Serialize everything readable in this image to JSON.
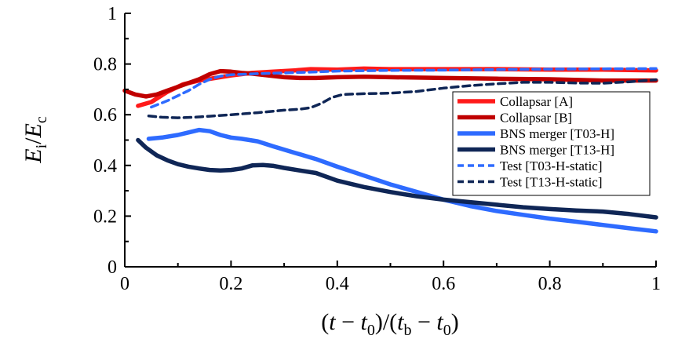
{
  "chart_data": {
    "type": "line",
    "title": "",
    "xlabel": "(t − t0)/(tb − t0)",
    "ylabel": "Ei/Ec",
    "xlim": [
      0,
      1
    ],
    "ylim": [
      0,
      1
    ],
    "x_ticks": [
      0,
      0.2,
      0.4,
      0.6,
      0.8,
      1
    ],
    "x_tick_labels": [
      "0",
      "0.2",
      "0.4",
      "0.6",
      "0.8",
      "1"
    ],
    "y_ticks": [
      0,
      0.2,
      0.4,
      0.6,
      0.8,
      1
    ],
    "y_tick_labels": [
      "0",
      "0.2",
      "0.4",
      "0.6",
      "0.8",
      "1"
    ],
    "grid": false,
    "legend_position": "right",
    "series": [
      {
        "name": "Collapsar [A]",
        "color": "#ff1a1a",
        "style": "solid",
        "x": [
          0.025,
          0.05,
          0.08,
          0.11,
          0.14,
          0.17,
          0.2,
          0.24,
          0.28,
          0.32,
          0.35,
          0.4,
          0.45,
          0.5,
          0.6,
          0.7,
          0.8,
          0.9,
          1.0
        ],
        "y": [
          0.635,
          0.65,
          0.69,
          0.72,
          0.735,
          0.745,
          0.755,
          0.765,
          0.77,
          0.775,
          0.78,
          0.778,
          0.782,
          0.78,
          0.78,
          0.78,
          0.778,
          0.778,
          0.775
        ]
      },
      {
        "name": "Collapsar [B]",
        "color": "#c00000",
        "style": "solid",
        "x": [
          0.0,
          0.02,
          0.04,
          0.06,
          0.08,
          0.1,
          0.12,
          0.14,
          0.16,
          0.18,
          0.2,
          0.22,
          0.24,
          0.27,
          0.3,
          0.33,
          0.36,
          0.4,
          0.45,
          0.5,
          0.6,
          0.7,
          0.8,
          0.9,
          1.0
        ],
        "y": [
          0.695,
          0.68,
          0.672,
          0.68,
          0.695,
          0.71,
          0.725,
          0.74,
          0.76,
          0.772,
          0.77,
          0.765,
          0.762,
          0.755,
          0.748,
          0.745,
          0.745,
          0.748,
          0.75,
          0.748,
          0.745,
          0.742,
          0.74,
          0.735,
          0.735
        ]
      },
      {
        "name": "BNS merger [T03-H]",
        "color": "#2e6bff",
        "style": "solid",
        "x": [
          0.045,
          0.07,
          0.1,
          0.12,
          0.14,
          0.16,
          0.18,
          0.2,
          0.22,
          0.25,
          0.28,
          0.32,
          0.36,
          0.4,
          0.45,
          0.5,
          0.55,
          0.6,
          0.65,
          0.7,
          0.75,
          0.8,
          0.85,
          0.9,
          0.95,
          1.0
        ],
        "y": [
          0.505,
          0.51,
          0.52,
          0.53,
          0.54,
          0.535,
          0.52,
          0.51,
          0.505,
          0.495,
          0.475,
          0.45,
          0.425,
          0.395,
          0.36,
          0.325,
          0.295,
          0.265,
          0.24,
          0.22,
          0.205,
          0.19,
          0.178,
          0.165,
          0.152,
          0.14
        ]
      },
      {
        "name": "BNS merger [T13-H]",
        "color": "#0f2656",
        "style": "solid",
        "x": [
          0.025,
          0.04,
          0.06,
          0.08,
          0.1,
          0.12,
          0.14,
          0.16,
          0.18,
          0.2,
          0.22,
          0.24,
          0.26,
          0.28,
          0.3,
          0.33,
          0.36,
          0.4,
          0.45,
          0.5,
          0.55,
          0.6,
          0.65,
          0.7,
          0.75,
          0.8,
          0.85,
          0.9,
          0.95,
          1.0
        ],
        "y": [
          0.5,
          0.47,
          0.44,
          0.42,
          0.405,
          0.395,
          0.388,
          0.382,
          0.38,
          0.382,
          0.388,
          0.4,
          0.402,
          0.398,
          0.39,
          0.38,
          0.37,
          0.34,
          0.315,
          0.295,
          0.278,
          0.265,
          0.255,
          0.245,
          0.235,
          0.228,
          0.222,
          0.218,
          0.208,
          0.195
        ]
      },
      {
        "name": "Test [T03-H-static]",
        "color": "#2e6bff",
        "style": "dashed",
        "x": [
          0.05,
          0.08,
          0.1,
          0.12,
          0.14,
          0.16,
          0.18,
          0.2,
          0.25,
          0.3,
          0.35,
          0.4,
          0.5,
          0.6,
          0.7,
          0.8,
          0.9,
          1.0
        ],
        "y": [
          0.63,
          0.655,
          0.675,
          0.695,
          0.72,
          0.74,
          0.752,
          0.758,
          0.762,
          0.765,
          0.768,
          0.772,
          0.775,
          0.776,
          0.778,
          0.78,
          0.781,
          0.782
        ]
      },
      {
        "name": "Test [T13-H-static]",
        "color": "#0f2656",
        "style": "dashed",
        "x": [
          0.045,
          0.07,
          0.1,
          0.13,
          0.16,
          0.2,
          0.25,
          0.3,
          0.33,
          0.35,
          0.37,
          0.39,
          0.41,
          0.45,
          0.5,
          0.55,
          0.6,
          0.65,
          0.7,
          0.75,
          0.8,
          0.85,
          0.9,
          0.95,
          1.0
        ],
        "y": [
          0.595,
          0.59,
          0.588,
          0.59,
          0.594,
          0.6,
          0.608,
          0.618,
          0.622,
          0.628,
          0.645,
          0.668,
          0.68,
          0.683,
          0.685,
          0.692,
          0.705,
          0.715,
          0.722,
          0.728,
          0.728,
          0.725,
          0.724,
          0.73,
          0.738
        ]
      }
    ]
  }
}
